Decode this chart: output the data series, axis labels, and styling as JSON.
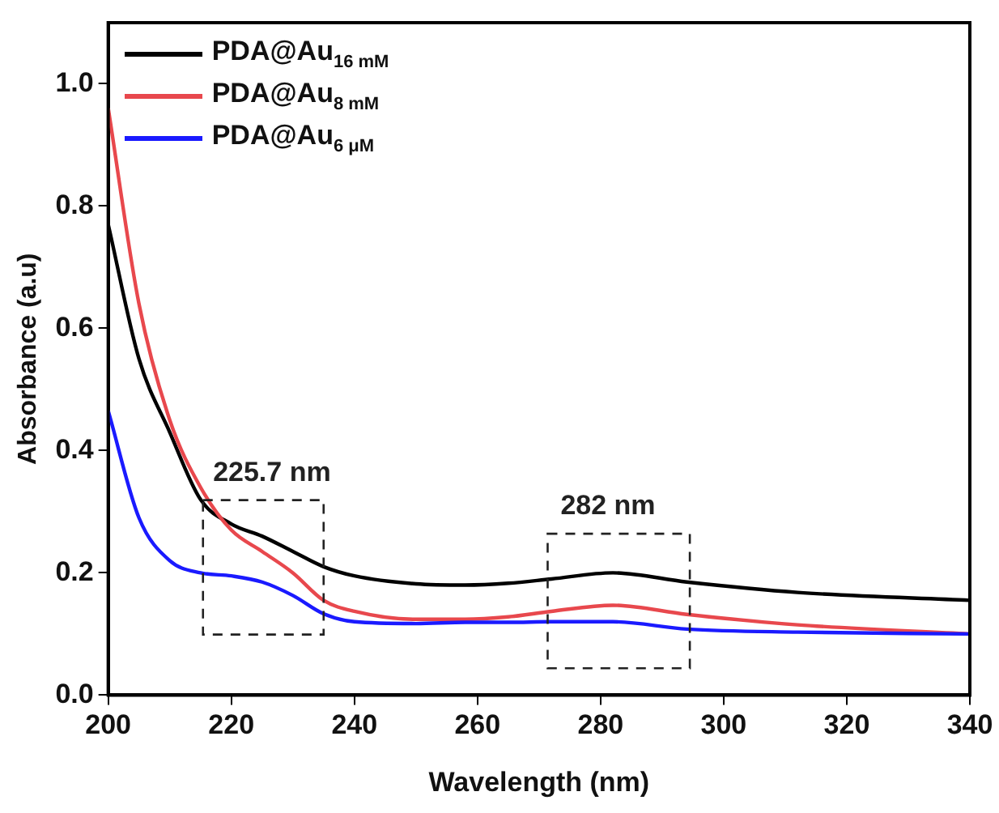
{
  "chart_data": {
    "type": "line",
    "xlabel": "Wavelength (nm)",
    "ylabel": "Absorbance (a.u)",
    "xlim": [
      200,
      340
    ],
    "xticks": [
      200,
      220,
      240,
      260,
      280,
      300,
      320,
      340
    ],
    "ylim": [
      0,
      1.1
    ],
    "yticks": [
      {
        "value": 0,
        "label": "0.0"
      },
      {
        "value": 0.2,
        "label": "0.2"
      },
      {
        "value": 0.4,
        "label": "0.4"
      },
      {
        "value": 0.6,
        "label": "0.6"
      },
      {
        "value": 0.8,
        "label": "0.8"
      },
      {
        "value": 1,
        "label": "1.0"
      }
    ],
    "x": [
      200,
      205,
      210,
      215,
      220,
      225,
      230,
      235,
      240,
      250,
      258,
      265,
      272,
      282,
      294,
      312,
      340
    ],
    "series": [
      {
        "name": "PDA@Au$_{16 mM}$",
        "color": "#000000",
        "values": [
          0.77,
          0.55,
          0.43,
          0.32,
          0.28,
          0.26,
          0.235,
          0.21,
          0.195,
          0.182,
          0.18,
          0.183,
          0.19,
          0.2,
          0.185,
          0.168,
          0.155
        ]
      },
      {
        "name": "PDA@Au$_{8 mM}$",
        "color": "#e8484d",
        "values": [
          0.96,
          0.64,
          0.45,
          0.34,
          0.27,
          0.235,
          0.2,
          0.155,
          0.137,
          0.124,
          0.124,
          0.128,
          0.137,
          0.147,
          0.132,
          0.115,
          0.1
        ]
      },
      {
        "name": "PDA@Au$_{6 μM}$",
        "color": "#1a1aff",
        "values": [
          0.465,
          0.29,
          0.22,
          0.2,
          0.195,
          0.185,
          0.163,
          0.133,
          0.12,
          0.117,
          0.119,
          0.119,
          0.12,
          0.12,
          0.108,
          0.103,
          0.1
        ]
      }
    ],
    "annotations": [
      "225.7 nm",
      "282 nm"
    ],
    "legend": "top left",
    "grid": false,
    "marker": "none",
    "line_style": "solid"
  }
}
